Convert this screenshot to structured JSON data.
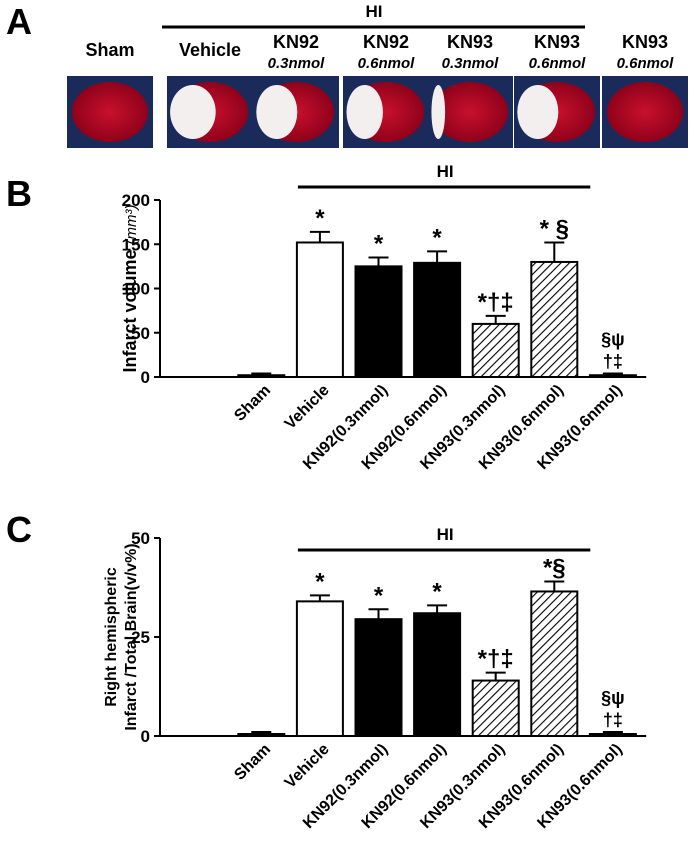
{
  "panel_a": {
    "label": "A",
    "group_label": "HI",
    "columns": [
      {
        "name": "Sham"
      },
      {
        "name": "Vehicle"
      },
      {
        "name": "KN92",
        "dose": "0.3nmol"
      },
      {
        "name": "KN92",
        "dose": "0.6nmol"
      },
      {
        "name": "KN93",
        "dose": "0.3nmol"
      },
      {
        "name": "KN93",
        "dose": "0.6nmol"
      },
      {
        "name": "KN93",
        "dose": "0.6nmol"
      }
    ]
  },
  "chart_data": [
    {
      "type": "bar",
      "panel_label": "B",
      "group_label": "HI",
      "ylabel": "Infarct volume",
      "ylabel_unit": "(mm³)",
      "categories": [
        "Sham",
        "Vehicle",
        "KN92(0.3nmol)",
        "KN92(0.6nmol)",
        "KN93(0.3nmol)",
        "KN93(0.6nmol)",
        "KN93(0.6nmol)"
      ],
      "values": [
        2,
        152,
        125,
        129,
        60,
        130,
        2
      ],
      "errors": [
        2,
        12,
        10,
        13,
        9,
        22,
        2
      ],
      "fills": [
        "#ffffff",
        "#ffffff",
        "#000000",
        "#000000",
        "hatch",
        "hatch",
        "hatch"
      ],
      "annotations": [
        [],
        [
          "*"
        ],
        [
          "*"
        ],
        [
          "*"
        ],
        [
          "*†‡"
        ],
        [
          "* §"
        ],
        [
          "§ψ",
          "†‡"
        ]
      ],
      "ylim": [
        0,
        200
      ],
      "yticks": [
        0,
        50,
        100,
        150,
        200
      ]
    },
    {
      "type": "bar",
      "panel_label": "C",
      "group_label": "HI",
      "ylabel": "Right hemispheric",
      "ylabel_line2": "Infarct /Total Brain(v/v%)",
      "categories": [
        "Sham",
        "Vehicle",
        "KN92(0.3nmol)",
        "KN92(0.6nmol)",
        "KN93(0.3nmol)",
        "KN93(0.6nmol)",
        "KN93(0.6nmol)"
      ],
      "values": [
        0.5,
        34,
        29.5,
        31,
        14,
        36.5,
        0.5
      ],
      "errors": [
        0.5,
        1.5,
        2.5,
        2,
        2,
        2.5,
        0.5
      ],
      "fills": [
        "#ffffff",
        "#ffffff",
        "#000000",
        "#000000",
        "hatch",
        "hatch",
        "hatch"
      ],
      "annotations": [
        [],
        [
          "*"
        ],
        [
          "*"
        ],
        [
          "*"
        ],
        [
          "*†‡"
        ],
        [
          "*§"
        ],
        [
          "§ψ",
          "†‡"
        ]
      ],
      "ylim": [
        0,
        50
      ],
      "yticks": [
        0,
        25,
        50
      ]
    }
  ]
}
